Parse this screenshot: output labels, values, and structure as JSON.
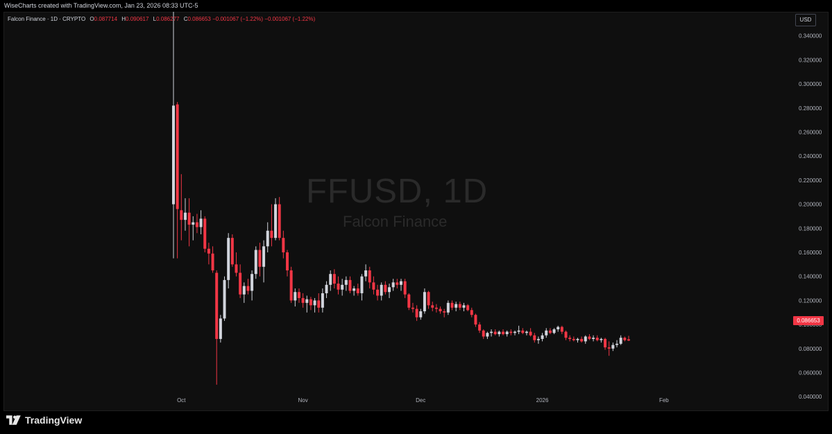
{
  "header": {
    "credit": "WiseCharts created with TradingView.com, Jan 23, 2026 08:33 UTC-5"
  },
  "legend": {
    "symbol": "Falcon Finance · 1D · CRYPTO",
    "o_label": "O",
    "o_value": "0.087714",
    "h_label": "H",
    "h_value": "0.090617",
    "l_label": "L",
    "l_value": "0.086277",
    "c_label": "C",
    "c_value": "0.086653",
    "change": "−0.001067 (−1.22%)",
    "change2": "−0.001067 (−1.22%)"
  },
  "currency_button": "USD",
  "watermark": {
    "title": "FFUSD, 1D",
    "subtitle": "Falcon Finance"
  },
  "last_price_label": "0.086653",
  "brand": {
    "logo_text": "TradingView"
  },
  "colors": {
    "up": "#d1d4dc",
    "down": "#f23645",
    "background": "#0f0f0f"
  },
  "chart_data": {
    "type": "candlestick",
    "title": "",
    "y_axis": {
      "position": "right",
      "range": [
        0.028,
        0.36
      ],
      "ticks": [
        0.34,
        0.32,
        0.3,
        0.28,
        0.26,
        0.24,
        0.22,
        0.2,
        0.18,
        0.16,
        0.14,
        0.12,
        0.1,
        0.08,
        0.06,
        0.04
      ],
      "tick_labels": [
        "0.340000",
        "0.320000",
        "0.300000",
        "0.280000",
        "0.260000",
        "0.240000",
        "0.220000",
        "0.200000",
        "0.180000",
        "0.160000",
        "0.140000",
        "0.120000",
        "0.100000",
        "0.080000",
        "0.060000",
        "0.040000"
      ]
    },
    "x_axis": {
      "start": "2025-09-29",
      "ticks": [
        {
          "label": "Oct",
          "date": "2025-10-01"
        },
        {
          "label": "Nov",
          "date": "2025-11-01"
        },
        {
          "label": "Dec",
          "date": "2025-12-01"
        },
        {
          "label": "2026",
          "date": "2026-01-01"
        },
        {
          "label": "Feb",
          "date": "2026-02-01"
        }
      ]
    },
    "grid": false,
    "candles": [
      {
        "d": "2025-09-29",
        "o": 0.2,
        "h": 0.36,
        "l": 0.155,
        "c": 0.282
      },
      {
        "d": "2025-09-30",
        "o": 0.283,
        "h": 0.285,
        "l": 0.155,
        "c": 0.196
      },
      {
        "d": "2025-10-01",
        "o": 0.195,
        "h": 0.225,
        "l": 0.17,
        "c": 0.187
      },
      {
        "d": "2025-10-02",
        "o": 0.187,
        "h": 0.205,
        "l": 0.178,
        "c": 0.193
      },
      {
        "d": "2025-10-03",
        "o": 0.193,
        "h": 0.205,
        "l": 0.165,
        "c": 0.183
      },
      {
        "d": "2025-10-04",
        "o": 0.183,
        "h": 0.19,
        "l": 0.17,
        "c": 0.185
      },
      {
        "d": "2025-10-05",
        "o": 0.185,
        "h": 0.192,
        "l": 0.176,
        "c": 0.181
      },
      {
        "d": "2025-10-06",
        "o": 0.181,
        "h": 0.195,
        "l": 0.175,
        "c": 0.188
      },
      {
        "d": "2025-10-07",
        "o": 0.188,
        "h": 0.19,
        "l": 0.16,
        "c": 0.163
      },
      {
        "d": "2025-10-08",
        "o": 0.163,
        "h": 0.168,
        "l": 0.15,
        "c": 0.159
      },
      {
        "d": "2025-10-09",
        "o": 0.159,
        "h": 0.165,
        "l": 0.143,
        "c": 0.145
      },
      {
        "d": "2025-10-10",
        "o": 0.143,
        "h": 0.145,
        "l": 0.05,
        "c": 0.088
      },
      {
        "d": "2025-10-11",
        "o": 0.088,
        "h": 0.108,
        "l": 0.085,
        "c": 0.105
      },
      {
        "d": "2025-10-12",
        "o": 0.105,
        "h": 0.14,
        "l": 0.103,
        "c": 0.137
      },
      {
        "d": "2025-10-13",
        "o": 0.137,
        "h": 0.176,
        "l": 0.13,
        "c": 0.172
      },
      {
        "d": "2025-10-14",
        "o": 0.172,
        "h": 0.175,
        "l": 0.148,
        "c": 0.15
      },
      {
        "d": "2025-10-15",
        "o": 0.15,
        "h": 0.16,
        "l": 0.14,
        "c": 0.143
      },
      {
        "d": "2025-10-16",
        "o": 0.143,
        "h": 0.15,
        "l": 0.122,
        "c": 0.125
      },
      {
        "d": "2025-10-17",
        "o": 0.125,
        "h": 0.135,
        "l": 0.118,
        "c": 0.132
      },
      {
        "d": "2025-10-18",
        "o": 0.132,
        "h": 0.138,
        "l": 0.125,
        "c": 0.128
      },
      {
        "d": "2025-10-19",
        "o": 0.128,
        "h": 0.145,
        "l": 0.12,
        "c": 0.142
      },
      {
        "d": "2025-10-20",
        "o": 0.142,
        "h": 0.165,
        "l": 0.138,
        "c": 0.162
      },
      {
        "d": "2025-10-21",
        "o": 0.162,
        "h": 0.168,
        "l": 0.14,
        "c": 0.148
      },
      {
        "d": "2025-10-22",
        "o": 0.148,
        "h": 0.17,
        "l": 0.135,
        "c": 0.165
      },
      {
        "d": "2025-10-23",
        "o": 0.165,
        "h": 0.185,
        "l": 0.16,
        "c": 0.178
      },
      {
        "d": "2025-10-24",
        "o": 0.178,
        "h": 0.2,
        "l": 0.165,
        "c": 0.172
      },
      {
        "d": "2025-10-25",
        "o": 0.172,
        "h": 0.205,
        "l": 0.17,
        "c": 0.2
      },
      {
        "d": "2025-10-26",
        "o": 0.2,
        "h": 0.206,
        "l": 0.17,
        "c": 0.172
      },
      {
        "d": "2025-10-27",
        "o": 0.172,
        "h": 0.178,
        "l": 0.155,
        "c": 0.16
      },
      {
        "d": "2025-10-28",
        "o": 0.16,
        "h": 0.162,
        "l": 0.14,
        "c": 0.145
      },
      {
        "d": "2025-10-29",
        "o": 0.145,
        "h": 0.148,
        "l": 0.118,
        "c": 0.12
      },
      {
        "d": "2025-10-30",
        "o": 0.12,
        "h": 0.13,
        "l": 0.115,
        "c": 0.127
      },
      {
        "d": "2025-10-31",
        "o": 0.127,
        "h": 0.13,
        "l": 0.118,
        "c": 0.122
      },
      {
        "d": "2025-11-01",
        "o": 0.122,
        "h": 0.126,
        "l": 0.114,
        "c": 0.118
      },
      {
        "d": "2025-11-02",
        "o": 0.118,
        "h": 0.124,
        "l": 0.11,
        "c": 0.121
      },
      {
        "d": "2025-11-03",
        "o": 0.121,
        "h": 0.123,
        "l": 0.112,
        "c": 0.116
      },
      {
        "d": "2025-11-04",
        "o": 0.116,
        "h": 0.122,
        "l": 0.11,
        "c": 0.12
      },
      {
        "d": "2025-11-05",
        "o": 0.12,
        "h": 0.126,
        "l": 0.11,
        "c": 0.114
      },
      {
        "d": "2025-11-06",
        "o": 0.114,
        "h": 0.13,
        "l": 0.11,
        "c": 0.126
      },
      {
        "d": "2025-11-07",
        "o": 0.126,
        "h": 0.136,
        "l": 0.122,
        "c": 0.133
      },
      {
        "d": "2025-11-08",
        "o": 0.133,
        "h": 0.145,
        "l": 0.128,
        "c": 0.142
      },
      {
        "d": "2025-11-09",
        "o": 0.142,
        "h": 0.146,
        "l": 0.13,
        "c": 0.134
      },
      {
        "d": "2025-11-10",
        "o": 0.134,
        "h": 0.14,
        "l": 0.125,
        "c": 0.129
      },
      {
        "d": "2025-11-11",
        "o": 0.129,
        "h": 0.138,
        "l": 0.124,
        "c": 0.133
      },
      {
        "d": "2025-11-12",
        "o": 0.133,
        "h": 0.14,
        "l": 0.128,
        "c": 0.137
      },
      {
        "d": "2025-11-13",
        "o": 0.137,
        "h": 0.14,
        "l": 0.126,
        "c": 0.128
      },
      {
        "d": "2025-11-14",
        "o": 0.128,
        "h": 0.132,
        "l": 0.124,
        "c": 0.13
      },
      {
        "d": "2025-11-15",
        "o": 0.13,
        "h": 0.134,
        "l": 0.124,
        "c": 0.126
      },
      {
        "d": "2025-11-16",
        "o": 0.126,
        "h": 0.142,
        "l": 0.12,
        "c": 0.14
      },
      {
        "d": "2025-11-17",
        "o": 0.14,
        "h": 0.15,
        "l": 0.136,
        "c": 0.145
      },
      {
        "d": "2025-11-18",
        "o": 0.145,
        "h": 0.148,
        "l": 0.13,
        "c": 0.135
      },
      {
        "d": "2025-11-19",
        "o": 0.135,
        "h": 0.14,
        "l": 0.125,
        "c": 0.129
      },
      {
        "d": "2025-11-20",
        "o": 0.129,
        "h": 0.133,
        "l": 0.12,
        "c": 0.124
      },
      {
        "d": "2025-11-21",
        "o": 0.124,
        "h": 0.135,
        "l": 0.12,
        "c": 0.133
      },
      {
        "d": "2025-11-22",
        "o": 0.133,
        "h": 0.136,
        "l": 0.125,
        "c": 0.127
      },
      {
        "d": "2025-11-23",
        "o": 0.127,
        "h": 0.134,
        "l": 0.122,
        "c": 0.131
      },
      {
        "d": "2025-11-24",
        "o": 0.131,
        "h": 0.138,
        "l": 0.128,
        "c": 0.135
      },
      {
        "d": "2025-11-25",
        "o": 0.135,
        "h": 0.138,
        "l": 0.13,
        "c": 0.133
      },
      {
        "d": "2025-11-26",
        "o": 0.133,
        "h": 0.138,
        "l": 0.128,
        "c": 0.136
      },
      {
        "d": "2025-11-27",
        "o": 0.136,
        "h": 0.138,
        "l": 0.122,
        "c": 0.125
      },
      {
        "d": "2025-11-28",
        "o": 0.125,
        "h": 0.126,
        "l": 0.112,
        "c": 0.114
      },
      {
        "d": "2025-11-29",
        "o": 0.114,
        "h": 0.118,
        "l": 0.11,
        "c": 0.113
      },
      {
        "d": "2025-11-30",
        "o": 0.113,
        "h": 0.116,
        "l": 0.103,
        "c": 0.106
      },
      {
        "d": "2025-12-01",
        "o": 0.106,
        "h": 0.113,
        "l": 0.104,
        "c": 0.111
      },
      {
        "d": "2025-12-02",
        "o": 0.111,
        "h": 0.13,
        "l": 0.109,
        "c": 0.127
      },
      {
        "d": "2025-12-03",
        "o": 0.127,
        "h": 0.128,
        "l": 0.113,
        "c": 0.116
      },
      {
        "d": "2025-12-04",
        "o": 0.116,
        "h": 0.119,
        "l": 0.111,
        "c": 0.114
      },
      {
        "d": "2025-12-05",
        "o": 0.114,
        "h": 0.117,
        "l": 0.11,
        "c": 0.113
      },
      {
        "d": "2025-12-06",
        "o": 0.113,
        "h": 0.115,
        "l": 0.109,
        "c": 0.111
      },
      {
        "d": "2025-12-07",
        "o": 0.111,
        "h": 0.113,
        "l": 0.106,
        "c": 0.11
      },
      {
        "d": "2025-12-08",
        "o": 0.11,
        "h": 0.12,
        "l": 0.108,
        "c": 0.118
      },
      {
        "d": "2025-12-09",
        "o": 0.118,
        "h": 0.12,
        "l": 0.112,
        "c": 0.114
      },
      {
        "d": "2025-12-10",
        "o": 0.114,
        "h": 0.119,
        "l": 0.111,
        "c": 0.117
      },
      {
        "d": "2025-12-11",
        "o": 0.117,
        "h": 0.119,
        "l": 0.112,
        "c": 0.114
      },
      {
        "d": "2025-12-12",
        "o": 0.114,
        "h": 0.118,
        "l": 0.111,
        "c": 0.116
      },
      {
        "d": "2025-12-13",
        "o": 0.116,
        "h": 0.117,
        "l": 0.111,
        "c": 0.112
      },
      {
        "d": "2025-12-14",
        "o": 0.112,
        "h": 0.114,
        "l": 0.106,
        "c": 0.108
      },
      {
        "d": "2025-12-15",
        "o": 0.108,
        "h": 0.109,
        "l": 0.098,
        "c": 0.1
      },
      {
        "d": "2025-12-16",
        "o": 0.1,
        "h": 0.102,
        "l": 0.093,
        "c": 0.095
      },
      {
        "d": "2025-12-17",
        "o": 0.095,
        "h": 0.096,
        "l": 0.088,
        "c": 0.09
      },
      {
        "d": "2025-12-18",
        "o": 0.09,
        "h": 0.094,
        "l": 0.088,
        "c": 0.093
      },
      {
        "d": "2025-12-19",
        "o": 0.093,
        "h": 0.096,
        "l": 0.09,
        "c": 0.094
      },
      {
        "d": "2025-12-20",
        "o": 0.094,
        "h": 0.096,
        "l": 0.091,
        "c": 0.092
      },
      {
        "d": "2025-12-21",
        "o": 0.092,
        "h": 0.095,
        "l": 0.09,
        "c": 0.094
      },
      {
        "d": "2025-12-22",
        "o": 0.094,
        "h": 0.096,
        "l": 0.091,
        "c": 0.092
      },
      {
        "d": "2025-12-23",
        "o": 0.092,
        "h": 0.095,
        "l": 0.09,
        "c": 0.094
      },
      {
        "d": "2025-12-24",
        "o": 0.094,
        "h": 0.096,
        "l": 0.091,
        "c": 0.093
      },
      {
        "d": "2025-12-25",
        "o": 0.093,
        "h": 0.095,
        "l": 0.091,
        "c": 0.094
      },
      {
        "d": "2025-12-26",
        "o": 0.094,
        "h": 0.099,
        "l": 0.092,
        "c": 0.095
      },
      {
        "d": "2025-12-27",
        "o": 0.095,
        "h": 0.097,
        "l": 0.092,
        "c": 0.093
      },
      {
        "d": "2025-12-28",
        "o": 0.093,
        "h": 0.095,
        "l": 0.091,
        "c": 0.094
      },
      {
        "d": "2025-12-29",
        "o": 0.094,
        "h": 0.097,
        "l": 0.09,
        "c": 0.091
      },
      {
        "d": "2025-12-30",
        "o": 0.091,
        "h": 0.093,
        "l": 0.085,
        "c": 0.087
      },
      {
        "d": "2025-12-31",
        "o": 0.087,
        "h": 0.09,
        "l": 0.084,
        "c": 0.088
      },
      {
        "d": "2026-01-01",
        "o": 0.088,
        "h": 0.093,
        "l": 0.086,
        "c": 0.091
      },
      {
        "d": "2026-01-02",
        "o": 0.091,
        "h": 0.097,
        "l": 0.089,
        "c": 0.095
      },
      {
        "d": "2026-01-03",
        "o": 0.095,
        "h": 0.097,
        "l": 0.092,
        "c": 0.093
      },
      {
        "d": "2026-01-04",
        "o": 0.093,
        "h": 0.097,
        "l": 0.092,
        "c": 0.096
      },
      {
        "d": "2026-01-05",
        "o": 0.096,
        "h": 0.099,
        "l": 0.094,
        "c": 0.098
      },
      {
        "d": "2026-01-06",
        "o": 0.098,
        "h": 0.099,
        "l": 0.092,
        "c": 0.094
      },
      {
        "d": "2026-01-07",
        "o": 0.094,
        "h": 0.095,
        "l": 0.087,
        "c": 0.089
      },
      {
        "d": "2026-01-08",
        "o": 0.089,
        "h": 0.091,
        "l": 0.086,
        "c": 0.088
      },
      {
        "d": "2026-01-09",
        "o": 0.088,
        "h": 0.09,
        "l": 0.086,
        "c": 0.087
      },
      {
        "d": "2026-01-10",
        "o": 0.087,
        "h": 0.089,
        "l": 0.085,
        "c": 0.088
      },
      {
        "d": "2026-01-11",
        "o": 0.088,
        "h": 0.09,
        "l": 0.085,
        "c": 0.086
      },
      {
        "d": "2026-01-12",
        "o": 0.086,
        "h": 0.091,
        "l": 0.084,
        "c": 0.09
      },
      {
        "d": "2026-01-13",
        "o": 0.09,
        "h": 0.092,
        "l": 0.087,
        "c": 0.088
      },
      {
        "d": "2026-01-14",
        "o": 0.088,
        "h": 0.091,
        "l": 0.086,
        "c": 0.089
      },
      {
        "d": "2026-01-15",
        "o": 0.089,
        "h": 0.091,
        "l": 0.086,
        "c": 0.087
      },
      {
        "d": "2026-01-16",
        "o": 0.087,
        "h": 0.089,
        "l": 0.085,
        "c": 0.088
      },
      {
        "d": "2026-01-17",
        "o": 0.088,
        "h": 0.089,
        "l": 0.079,
        "c": 0.081
      },
      {
        "d": "2026-01-18",
        "o": 0.081,
        "h": 0.086,
        "l": 0.074,
        "c": 0.08
      },
      {
        "d": "2026-01-19",
        "o": 0.08,
        "h": 0.085,
        "l": 0.078,
        "c": 0.083
      },
      {
        "d": "2026-01-20",
        "o": 0.083,
        "h": 0.087,
        "l": 0.081,
        "c": 0.084
      },
      {
        "d": "2026-01-21",
        "o": 0.084,
        "h": 0.091,
        "l": 0.083,
        "c": 0.089
      },
      {
        "d": "2026-01-22",
        "o": 0.089,
        "h": 0.09,
        "l": 0.086,
        "c": 0.087
      },
      {
        "d": "2026-01-23",
        "o": 0.087714,
        "h": 0.090617,
        "l": 0.086277,
        "c": 0.086653
      }
    ]
  }
}
